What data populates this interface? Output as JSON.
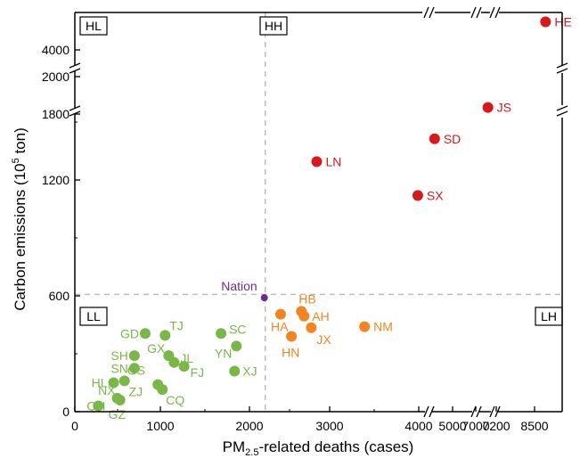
{
  "chart_data": {
    "type": "scatter",
    "xlabel": {
      "pre": "PM",
      "sub": "2.5",
      "post": "-related deaths (cases)"
    },
    "ylabel": {
      "pre": "Carbon emissions (10",
      "sup": "5",
      "post": " ton)"
    },
    "x_ticks": [
      "0",
      "1000",
      "2000",
      "3000",
      "4000",
      "5000",
      "7000",
      "7200",
      "8500"
    ],
    "y_ticks": [
      "0",
      "600",
      "1200",
      "1800",
      "2000",
      "4000"
    ],
    "thresholds": {
      "x": 2110,
      "y": 580
    },
    "quadrants": [
      "HL",
      "HH",
      "LL",
      "LH"
    ],
    "colors": {
      "high_high": "#d7191c",
      "low_high": "#f28522",
      "low_low": "#7ab648",
      "nation": "#6a2c8a",
      "threshold": "#bdbdbd"
    },
    "series": [
      {
        "group": "HH",
        "color": "#d7191c",
        "points": [
          {
            "label": "HE",
            "x": 8600,
            "y": 4900
          },
          {
            "label": "JS",
            "x": 7100,
            "y": 1850
          },
          {
            "label": "SD",
            "x": 4800,
            "y": 1480
          },
          {
            "label": "LN",
            "x": 2680,
            "y": 1325
          },
          {
            "label": "SX",
            "x": 3800,
            "y": 1120
          }
        ]
      },
      {
        "group": "LH",
        "color": "#f28522",
        "points": [
          {
            "label": "HB",
            "x": 2510,
            "y": 520
          },
          {
            "label": "AH",
            "x": 2540,
            "y": 495
          },
          {
            "label": "HA",
            "x": 2280,
            "y": 505
          },
          {
            "label": "JX",
            "x": 2620,
            "y": 435
          },
          {
            "label": "HN",
            "x": 2400,
            "y": 390
          },
          {
            "label": "NM",
            "x": 3210,
            "y": 440
          }
        ]
      },
      {
        "group": "LL",
        "color": "#7ab648",
        "points": [
          {
            "label": "GD",
            "x": 780,
            "y": 405
          },
          {
            "label": "TJ",
            "x": 1000,
            "y": 395
          },
          {
            "label": "SC",
            "x": 1620,
            "y": 405
          },
          {
            "label": "GX",
            "x": 1040,
            "y": 290
          },
          {
            "label": "SH",
            "x": 660,
            "y": 290
          },
          {
            "label": "YN",
            "x": 1790,
            "y": 340
          },
          {
            "label": "JL",
            "x": 1100,
            "y": 255
          },
          {
            "label": "SN",
            "x": 660,
            "y": 225
          },
          {
            "label": "FJ",
            "x": 1210,
            "y": 235
          },
          {
            "label": "XJ",
            "x": 1770,
            "y": 210
          },
          {
            "label": "HL",
            "x": 430,
            "y": 150
          },
          {
            "label": "GS",
            "x": 550,
            "y": 160
          },
          {
            "label": "ZJ",
            "x": 920,
            "y": 140
          },
          {
            "label": "CQ",
            "x": 970,
            "y": 115
          },
          {
            "label": "NX",
            "x": 470,
            "y": 70
          },
          {
            "label": "GZ",
            "x": 500,
            "y": 60
          },
          {
            "label": "QH",
            "x": 260,
            "y": 30
          }
        ]
      },
      {
        "group": "Nation",
        "color": "#6a2c8a",
        "points": [
          {
            "label": "Nation",
            "x": 2100,
            "y": 590
          }
        ]
      }
    ]
  }
}
